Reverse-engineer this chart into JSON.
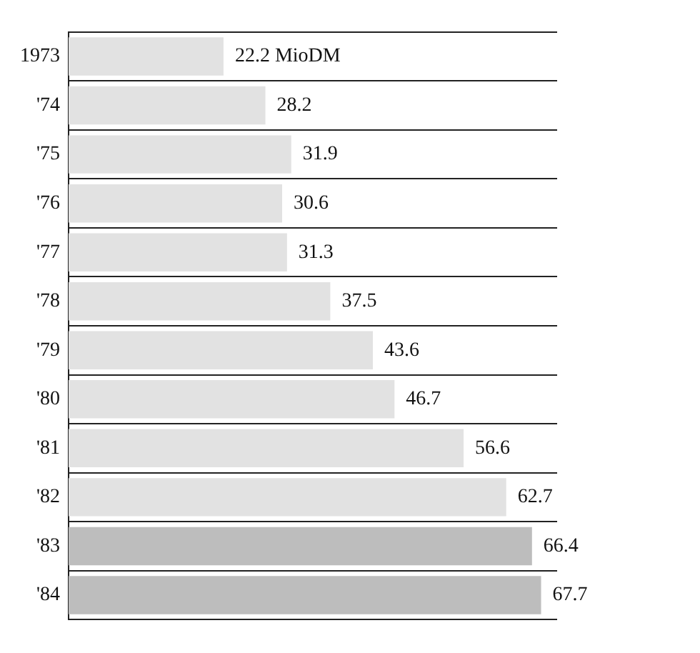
{
  "chart_data": {
    "type": "bar",
    "orientation": "horizontal",
    "categories": [
      "1973",
      "'74",
      "'75",
      "'76",
      "'77",
      "'78",
      "'79",
      "'80",
      "'81",
      "'82",
      "'83",
      "'84"
    ],
    "values": [
      22.2,
      28.2,
      31.9,
      30.6,
      31.3,
      37.5,
      43.6,
      46.7,
      56.6,
      62.7,
      66.4,
      67.7
    ],
    "colors": [
      "#e2e2e2",
      "#e2e2e2",
      "#e2e2e2",
      "#e2e2e2",
      "#e2e2e2",
      "#e2e2e2",
      "#e2e2e2",
      "#e2e2e2",
      "#e2e2e2",
      "#e2e2e2",
      "#bdbdbd",
      "#bdbdbd"
    ],
    "value_labels": [
      "22.2 MioDM",
      "28.2",
      "31.9",
      "30.6",
      "31.3",
      "37.5",
      "43.6",
      "46.7",
      "56.6",
      "62.7",
      "66.4",
      "67.7"
    ],
    "grid": "y",
    "legend": false
  }
}
